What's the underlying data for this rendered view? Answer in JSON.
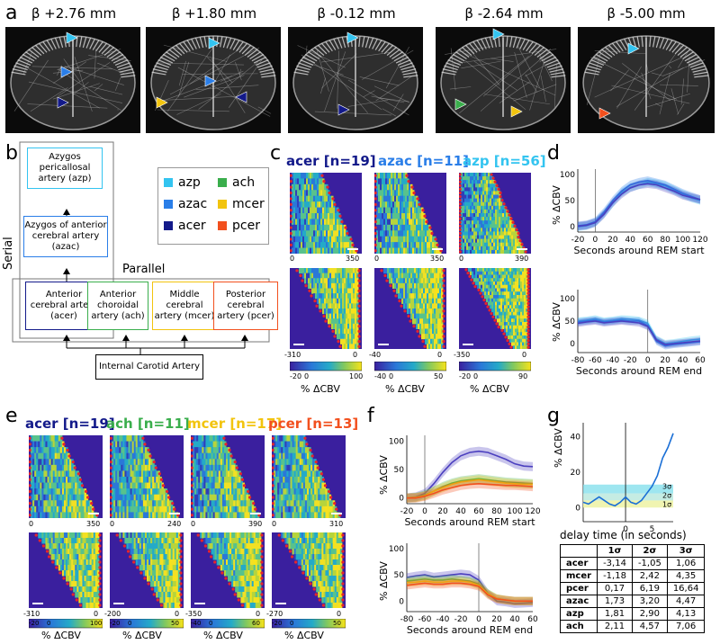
{
  "panel_labels": {
    "a": "a",
    "b": "b",
    "c": "c",
    "d": "d",
    "e": "e",
    "f": "f",
    "g": "g"
  },
  "colors": {
    "azp": "#33c4f0",
    "azac": "#2a7ee8",
    "acer": "#131a8a",
    "ach": "#3aae4c",
    "mcer": "#f2c40e",
    "pcer": "#f2501e",
    "heat_bg": "#3a1f9e",
    "red_dot": "#e8252a"
  },
  "panel_a": {
    "slices": [
      "β +2.76 mm",
      "β +1.80 mm",
      "β -0.12 mm",
      "β -2.64 mm",
      "β -5.00 mm"
    ]
  },
  "panel_b": {
    "serial_label": "Serial",
    "parallel_label": "Parallel",
    "boxes": {
      "azp": "Azygos pericallosal artery (azp)",
      "azac": "Azygos of anterior cerebral artery (azac)",
      "acer": "Anterior cerebral artery (acer)",
      "ach": "Anterior choroidal artery (ach)",
      "mcer": "Middle cerebral artery (mcer)",
      "pcer": "Posterior cerebral artery (pcer)",
      "ica": "Internal Carotid Artery"
    },
    "legend": [
      {
        "name": "azp",
        "color": "#33c4f0"
      },
      {
        "name": "ach",
        "color": "#3aae4c"
      },
      {
        "name": "azac",
        "color": "#2a7ee8"
      },
      {
        "name": "mcer",
        "color": "#f2c40e"
      },
      {
        "name": "acer",
        "color": "#131a8a"
      },
      {
        "name": "pcer",
        "color": "#f2501e"
      }
    ]
  },
  "panel_c": {
    "heatmaps": [
      {
        "title": "acer [n=19]",
        "top_ticks": [
          "0",
          "350"
        ],
        "bottom_ticks": [
          "-310",
          "0"
        ],
        "cbar": [
          "-20",
          "0",
          "100"
        ]
      },
      {
        "title": "azac [n=11]",
        "top_ticks": [
          "0",
          "350"
        ],
        "bottom_ticks": [
          "-40",
          "0"
        ],
        "cbar": [
          "-40",
          "0",
          "50"
        ]
      },
      {
        "title": "azp [n=56]",
        "top_ticks": [
          "0",
          "390"
        ],
        "bottom_ticks": [
          "-350",
          "0"
        ],
        "cbar": [
          "-20",
          "0",
          "90"
        ]
      }
    ],
    "cbar_label": "% ΔCBV"
  },
  "panel_d": {
    "ylabel": "% ΔCBV",
    "top": {
      "xlabel": "Seconds around REM start",
      "xticks": [
        "-20",
        "0",
        "20",
        "40",
        "60",
        "80",
        "100",
        "120"
      ],
      "yticks": [
        "100",
        "50",
        "0"
      ]
    },
    "bottom": {
      "xlabel": "Seconds around REM end",
      "xticks": [
        "-80",
        "-60",
        "-40",
        "-20",
        "0",
        "20",
        "40",
        "60"
      ],
      "yticks": [
        "100",
        "50",
        "0"
      ]
    }
  },
  "panel_e": {
    "heatmaps": [
      {
        "title": "acer [n=19]",
        "top_ticks": [
          "0",
          "350"
        ],
        "bottom_ticks": [
          "-310",
          "0"
        ],
        "cbar": [
          "-20",
          "0",
          "100"
        ]
      },
      {
        "title": "ach [n=11]",
        "top_ticks": [
          "0",
          "240"
        ],
        "bottom_ticks": [
          "-200",
          "0"
        ],
        "cbar": [
          "-20",
          "0",
          "50"
        ]
      },
      {
        "title": "mcer [n=17]",
        "top_ticks": [
          "0",
          "390"
        ],
        "bottom_ticks": [
          "-350",
          "0"
        ],
        "cbar": [
          "-40",
          "0",
          "60"
        ]
      },
      {
        "title": "pcer [n=13]",
        "top_ticks": [
          "0",
          "310"
        ],
        "bottom_ticks": [
          "-270",
          "0"
        ],
        "cbar": [
          "-20",
          "0",
          "50"
        ]
      }
    ],
    "cbar_label": "% ΔCBV"
  },
  "panel_f": {
    "ylabel": "% ΔCBV",
    "top": {
      "xlabel": "Seconds around REM start",
      "xticks": [
        "-20",
        "0",
        "20",
        "40",
        "60",
        "80",
        "100",
        "120"
      ],
      "yticks": [
        "100",
        "50",
        "0"
      ]
    },
    "bottom": {
      "xlabel": "Seconds around REM end",
      "xticks": [
        "-80",
        "-60",
        "-40",
        "-20",
        "0",
        "20",
        "40",
        "60"
      ],
      "yticks": [
        "100",
        "50",
        "0"
      ]
    }
  },
  "panel_g": {
    "ylabel": "% ΔCBV",
    "yticks": [
      "40",
      "20",
      "0"
    ],
    "xticks": [
      "0",
      "5"
    ],
    "sigma": [
      "3σ",
      "2σ",
      "1σ"
    ],
    "table_title": "delay time (in seconds)",
    "columns": [
      "",
      "1σ",
      "2σ",
      "3σ"
    ],
    "rows": [
      [
        "acer",
        "-3,14",
        "-1,05",
        "1,06"
      ],
      [
        "mcer",
        "-1,18",
        "2,42",
        "4,35"
      ],
      [
        "pcer",
        "0,17",
        "6,19",
        "16,64"
      ],
      [
        "azac",
        "1,73",
        "3,20",
        "4,47"
      ],
      [
        "azp",
        "1,81",
        "2,90",
        "4,13"
      ],
      [
        "ach",
        "2,11",
        "4,57",
        "7,06"
      ]
    ]
  },
  "chart_data": [
    {
      "type": "line",
      "title": "Panel d top",
      "xlabel": "Seconds around REM start",
      "ylabel": "% ΔCBV",
      "xlim": [
        -20,
        120
      ],
      "ylim": [
        -10,
        110
      ],
      "x": [
        -20,
        -10,
        0,
        10,
        20,
        30,
        40,
        50,
        60,
        70,
        80,
        90,
        100,
        110,
        120
      ],
      "series": [
        {
          "name": "azp",
          "values": [
            0,
            2,
            8,
            25,
            45,
            65,
            75,
            80,
            85,
            82,
            78,
            70,
            62,
            55,
            50
          ]
        },
        {
          "name": "azac",
          "values": [
            2,
            4,
            10,
            28,
            50,
            68,
            80,
            85,
            88,
            84,
            80,
            72,
            64,
            58,
            52
          ]
        },
        {
          "name": "acer",
          "values": [
            1,
            3,
            8,
            24,
            46,
            62,
            74,
            80,
            82,
            80,
            74,
            68,
            60,
            56,
            52
          ]
        }
      ]
    },
    {
      "type": "line",
      "title": "Panel d bottom",
      "xlabel": "Seconds around REM end",
      "ylabel": "% ΔCBV",
      "xlim": [
        -80,
        60
      ],
      "ylim": [
        -20,
        120
      ],
      "x": [
        -80,
        -70,
        -60,
        -50,
        -40,
        -30,
        -20,
        -10,
        0,
        10,
        20,
        30,
        40,
        50,
        60
      ],
      "series": [
        {
          "name": "azp",
          "values": [
            50,
            52,
            55,
            50,
            52,
            55,
            54,
            52,
            45,
            10,
            0,
            2,
            5,
            8,
            10
          ]
        },
        {
          "name": "azac",
          "values": [
            48,
            50,
            52,
            48,
            50,
            52,
            50,
            50,
            40,
            5,
            -5,
            -2,
            0,
            2,
            4
          ]
        },
        {
          "name": "acer",
          "values": [
            45,
            48,
            50,
            46,
            48,
            50,
            48,
            46,
            38,
            8,
            -2,
            0,
            2,
            4,
            6
          ]
        }
      ]
    },
    {
      "type": "line",
      "title": "Panel f top",
      "xlabel": "Seconds around REM start",
      "ylabel": "% ΔCBV",
      "xlim": [
        -20,
        120
      ],
      "ylim": [
        -10,
        110
      ],
      "x": [
        -20,
        -10,
        0,
        10,
        20,
        30,
        40,
        50,
        60,
        70,
        80,
        90,
        100,
        110,
        120
      ],
      "series": [
        {
          "name": "acer",
          "values": [
            0,
            2,
            8,
            25,
            45,
            62,
            74,
            80,
            82,
            80,
            74,
            68,
            60,
            56,
            55
          ]
        },
        {
          "name": "ach",
          "values": [
            0,
            1,
            5,
            12,
            20,
            26,
            30,
            32,
            34,
            32,
            30,
            28,
            27,
            26,
            25
          ]
        },
        {
          "name": "mcer",
          "values": [
            0,
            1,
            4,
            12,
            18,
            24,
            28,
            30,
            32,
            30,
            28,
            26,
            25,
            24,
            24
          ]
        },
        {
          "name": "pcer",
          "values": [
            0,
            0,
            3,
            8,
            14,
            18,
            22,
            24,
            25,
            24,
            23,
            22,
            22,
            21,
            20
          ]
        }
      ]
    },
    {
      "type": "line",
      "title": "Panel f bottom",
      "xlabel": "Seconds around REM end",
      "ylabel": "% ΔCBV",
      "xlim": [
        -80,
        60
      ],
      "ylim": [
        -20,
        110
      ],
      "x": [
        -80,
        -70,
        -60,
        -50,
        -40,
        -30,
        -20,
        -10,
        0,
        10,
        20,
        30,
        40,
        50,
        60
      ],
      "series": [
        {
          "name": "acer",
          "values": [
            45,
            48,
            50,
            46,
            48,
            50,
            52,
            50,
            40,
            15,
            0,
            -2,
            -5,
            -4,
            -3
          ]
        },
        {
          "name": "ach",
          "values": [
            38,
            40,
            42,
            40,
            40,
            42,
            40,
            38,
            32,
            15,
            5,
            2,
            0,
            0,
            0
          ]
        },
        {
          "name": "mcer",
          "values": [
            35,
            36,
            38,
            36,
            36,
            38,
            38,
            36,
            30,
            14,
            5,
            2,
            0,
            0,
            0
          ]
        },
        {
          "name": "pcer",
          "values": [
            30,
            32,
            34,
            32,
            32,
            34,
            34,
            32,
            28,
            12,
            4,
            2,
            0,
            0,
            0
          ]
        }
      ]
    },
    {
      "type": "line",
      "title": "Panel g",
      "xlabel": "",
      "ylabel": "% ΔCBV",
      "xlim": [
        -8,
        9
      ],
      "ylim": [
        -8,
        48
      ],
      "x": [
        -8,
        -7,
        -6,
        -5,
        -4,
        -3,
        -2,
        -1,
        0,
        1,
        2,
        3,
        4,
        5,
        6,
        7,
        8,
        9
      ],
      "series": [
        {
          "name": "acer",
          "values": [
            3,
            2,
            4,
            6,
            4,
            2,
            1,
            3,
            6,
            3,
            2,
            4,
            8,
            12,
            18,
            28,
            34,
            42
          ]
        }
      ]
    }
  ]
}
